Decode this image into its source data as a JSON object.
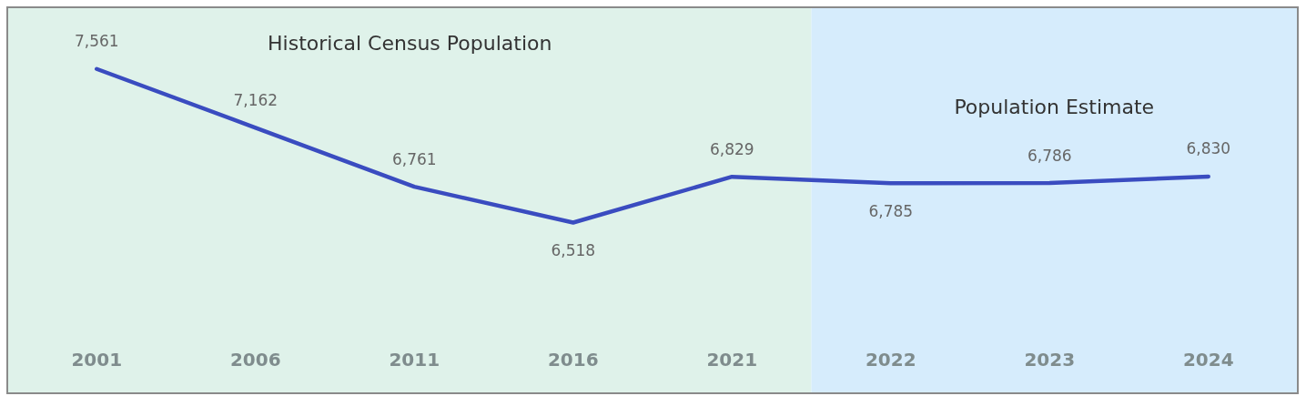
{
  "chart_data": {
    "type": "line",
    "categories": [
      "2001",
      "2006",
      "2011",
      "2016",
      "2021",
      "2022",
      "2023",
      "2024"
    ],
    "series": [
      {
        "color": "#3a4cc0",
        "values": [
          7561,
          7162,
          6761,
          6518,
          6829,
          6785,
          6786,
          6830
        ],
        "value_labels": [
          "7,561",
          "7,162",
          "6,761",
          "6,518",
          "6,829",
          "6,785",
          "6,786",
          "6,830"
        ]
      }
    ],
    "bands": [
      {
        "axis": "x",
        "from": "2001",
        "to": "2021",
        "label": "Historical Census Population",
        "color": "#dff2ea"
      },
      {
        "axis": "x",
        "from": "2022",
        "to": "2024",
        "label": "Population Estimate",
        "color": "#d6ecfc"
      }
    ],
    "grid": false,
    "marker": "none",
    "line_style": "solid"
  }
}
